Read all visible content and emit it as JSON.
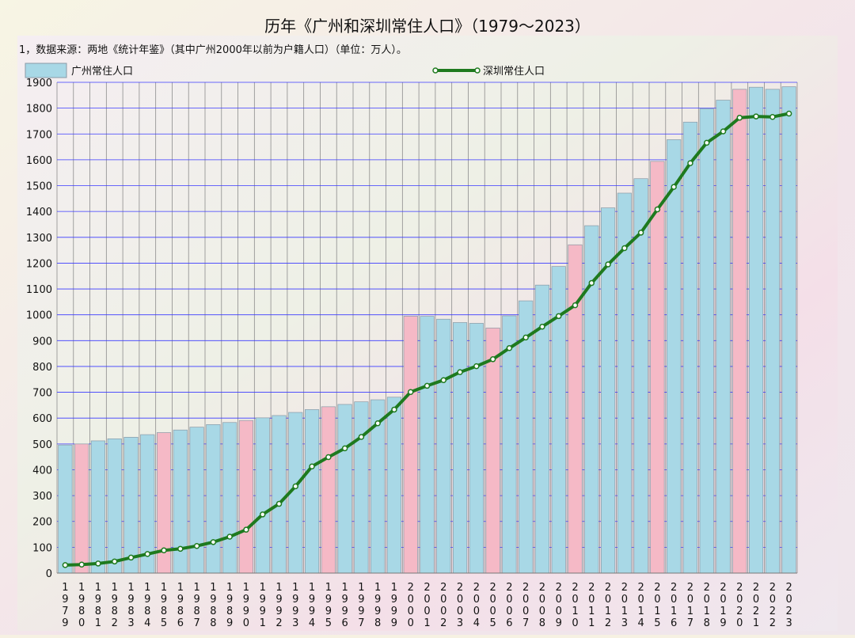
{
  "chart_data": {
    "type": "bar",
    "title": "历年《广州和深圳常住人口》（1979～2023）",
    "subtitle": "1，数据来源：两地《统计年鉴》（其中广州2000年以前为户籍人口）（单位：万人）。",
    "categories": [
      "1979",
      "1980",
      "1981",
      "1982",
      "1983",
      "1984",
      "1985",
      "1986",
      "1987",
      "1988",
      "1989",
      "1990",
      "1991",
      "1992",
      "1993",
      "1994",
      "1995",
      "1996",
      "1997",
      "1998",
      "1999",
      "2000",
      "2001",
      "2002",
      "2003",
      "2004",
      "2005",
      "2006",
      "2007",
      "2008",
      "2009",
      "2010",
      "2011",
      "2012",
      "2013",
      "2014",
      "2015",
      "2016",
      "2017",
      "2018",
      "2019",
      "2020",
      "2021",
      "2022",
      "2023"
    ],
    "series": [
      {
        "name": "广州常住人口",
        "kind": "bar",
        "values": [
          496,
          500,
          512,
          520,
          526,
          536,
          544,
          554,
          565,
          575,
          583,
          591,
          601,
          610,
          622,
          633,
          644,
          653,
          663,
          671,
          681,
          995,
          994,
          983,
          970,
          967,
          949,
          996,
          1054,
          1115,
          1187,
          1271,
          1345,
          1414,
          1471,
          1527,
          1594,
          1678,
          1746,
          1798,
          1831,
          1873,
          1881,
          1873,
          1883
        ],
        "highlight_years": [
          "1980",
          "1985",
          "1990",
          "1995",
          "2000",
          "2005",
          "2010",
          "2015",
          "2020"
        ]
      },
      {
        "name": "深圳常住人口",
        "kind": "line",
        "values": [
          31,
          33,
          37,
          45,
          60,
          74,
          88,
          94,
          105,
          120,
          141,
          168,
          227,
          268,
          336,
          413,
          449,
          483,
          527,
          580,
          633,
          701,
          725,
          747,
          778,
          801,
          828,
          871,
          912,
          954,
          995,
          1037,
          1123,
          1195,
          1258,
          1318,
          1408,
          1495,
          1587,
          1666,
          1710,
          1763,
          1768,
          1766,
          1779
        ]
      }
    ],
    "ylim": [
      0,
      1900
    ],
    "yticks": [
      0,
      100,
      200,
      300,
      400,
      500,
      600,
      700,
      800,
      900,
      1000,
      1100,
      1200,
      1300,
      1400,
      1500,
      1600,
      1700,
      1800,
      1900
    ],
    "grid": true,
    "legend": "top",
    "colors": {
      "bar": "#a8d8e6",
      "bar_highlight": "#f5b9c6",
      "bar_edge": "#8a9aa6",
      "line": "#1e7a1e",
      "marker_fill": "#ffffff",
      "grid_h": "#3a3aff",
      "grid_v": "#8c8c8c"
    }
  }
}
